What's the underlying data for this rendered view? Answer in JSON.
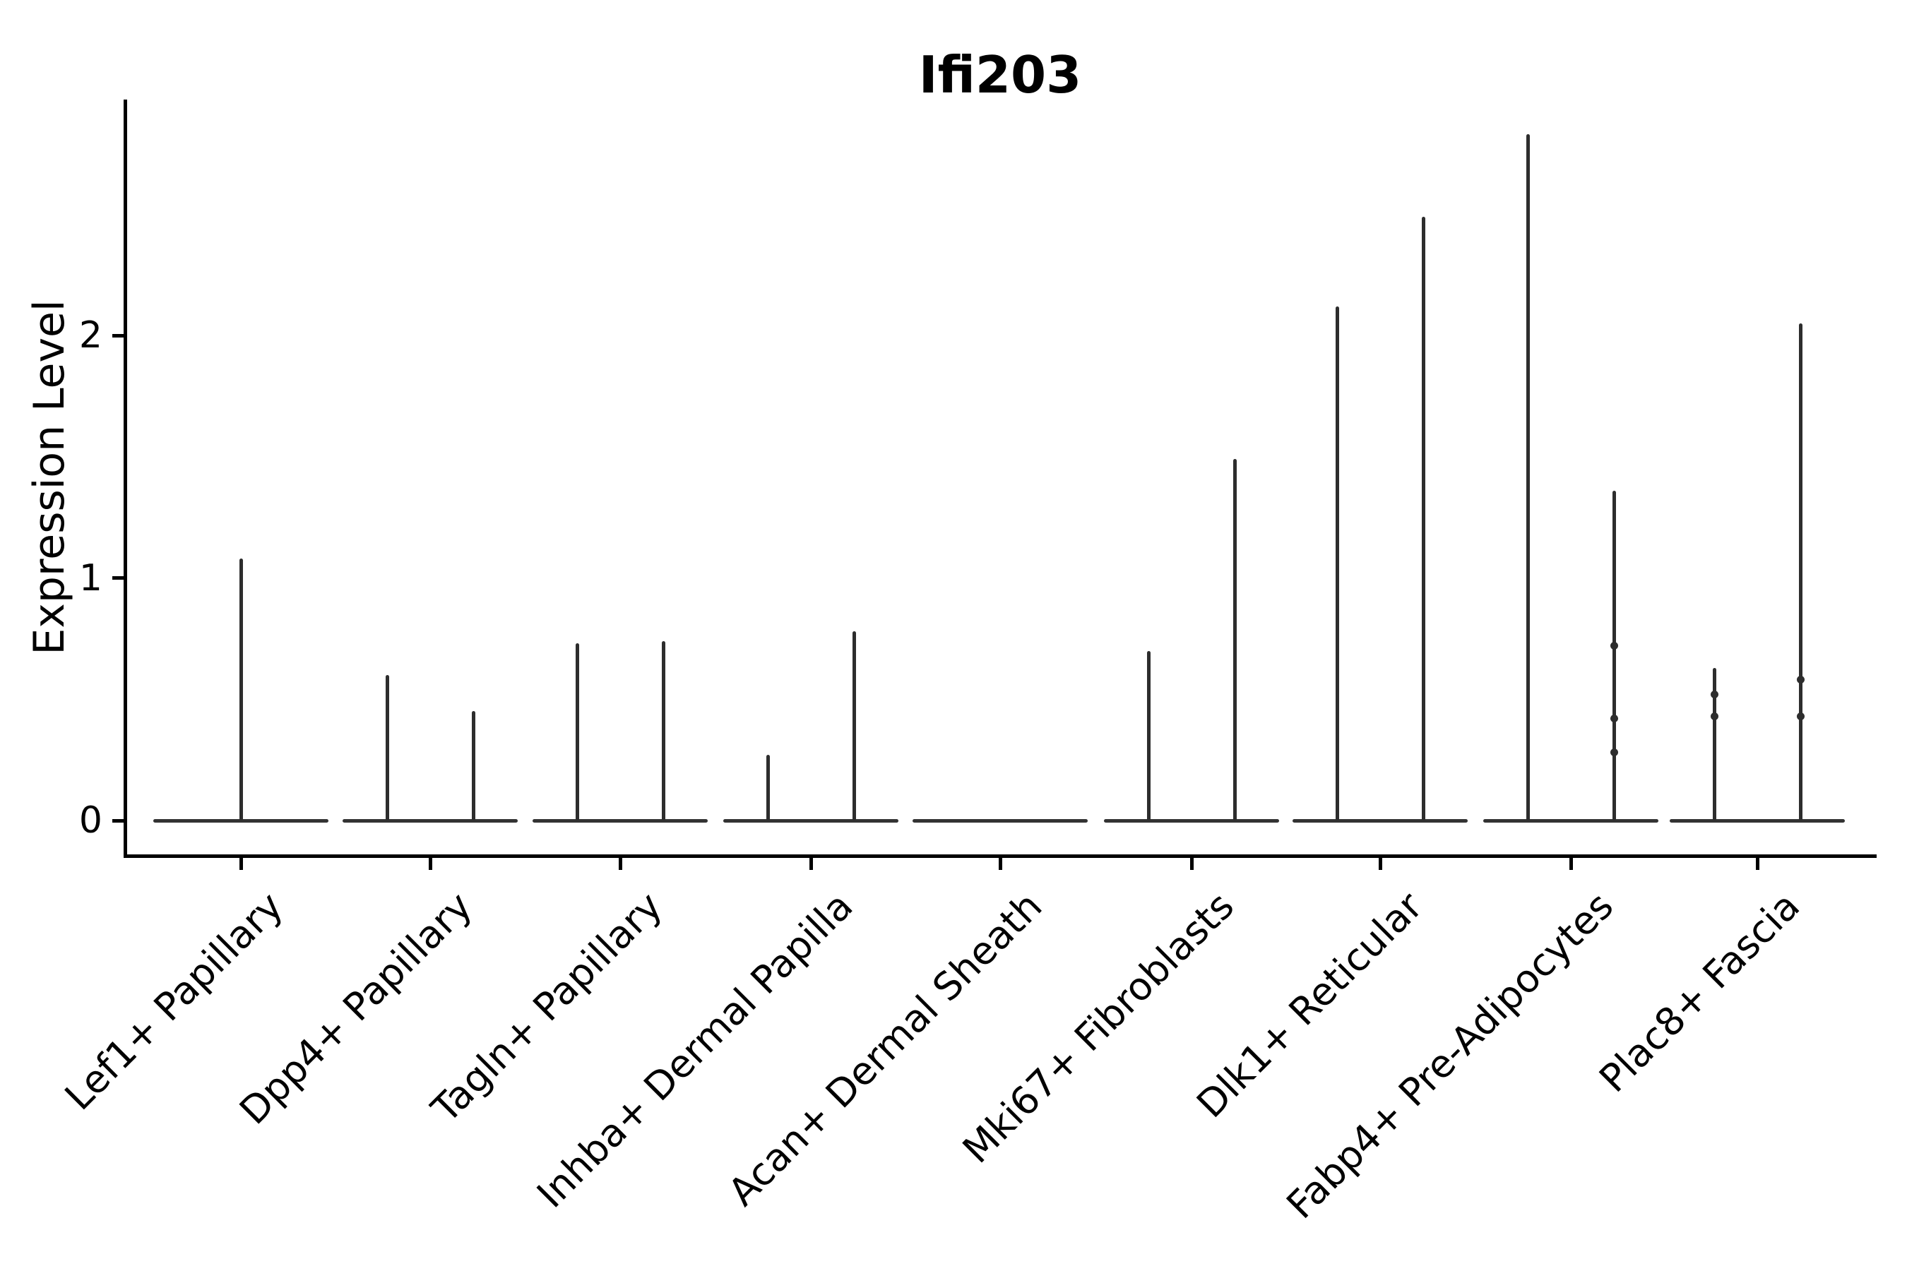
{
  "title": "Ifi203",
  "y_axis": {
    "label": "Expression Level",
    "tick_labels": [
      "0",
      "1",
      "2"
    ]
  },
  "colors": {
    "violin_line": "#2d2d2d",
    "axis": "#000000",
    "text": "#000000",
    "background": "#ffffff"
  },
  "chart_data": {
    "type": "violin",
    "title": "Ifi203",
    "xlabel": "",
    "ylabel": "Expression Level",
    "ylim": [
      -0.15,
      2.97
    ],
    "yticks": [
      0,
      1,
      2
    ],
    "grid": false,
    "legend": "none",
    "x_tick_rotation": 45,
    "categories": [
      "Lef1+ Papillary",
      "Dpp4+ Papillary",
      "Tagln+ Papillary",
      "Inhba+ Dermal Papilla",
      "Acan+ Dermal Sheath",
      "Mki67+ Fibroblasts",
      "Dlk1+ Reticular",
      "Fabp4+ Pre-Adipocytes",
      "Plac8+ Fascia"
    ],
    "description": "Violin plot of Ifi203 expression; each cluster shows a flat violin base at expression 0 with thin spikes reaching the maximum expression of sub-violins (left/right dodged, or centered when single).",
    "base_value": 0,
    "violins": [
      {
        "category": "Lef1+ Papillary",
        "spikes": [
          {
            "position": "center",
            "max": 1.08,
            "bumps": []
          }
        ]
      },
      {
        "category": "Dpp4+ Papillary",
        "spikes": [
          {
            "position": "left",
            "max": 0.6,
            "bumps": []
          },
          {
            "position": "right",
            "max": 0.45,
            "bumps": []
          }
        ]
      },
      {
        "category": "Tagln+ Papillary",
        "spikes": [
          {
            "position": "left",
            "max": 0.73,
            "bumps": []
          },
          {
            "position": "right",
            "max": 0.74,
            "bumps": []
          }
        ]
      },
      {
        "category": "Inhba+ Dermal Papilla",
        "spikes": [
          {
            "position": "left",
            "max": 0.27,
            "bumps": []
          },
          {
            "position": "right",
            "max": 0.78,
            "bumps": []
          }
        ]
      },
      {
        "category": "Acan+ Dermal Sheath",
        "spikes": []
      },
      {
        "category": "Mki67+ Fibroblasts",
        "spikes": [
          {
            "position": "left",
            "max": 0.7,
            "bumps": []
          },
          {
            "position": "right",
            "max": 1.49,
            "bumps": []
          }
        ]
      },
      {
        "category": "Dlk1+ Reticular",
        "spikes": [
          {
            "position": "left",
            "max": 2.12,
            "bumps": []
          },
          {
            "position": "right",
            "max": 2.49,
            "bumps": []
          }
        ]
      },
      {
        "category": "Fabp4+ Pre-Adipocytes",
        "spikes": [
          {
            "position": "left",
            "max": 2.83,
            "bumps": []
          },
          {
            "position": "right",
            "max": 1.36,
            "bumps": [
              0.72,
              0.42,
              0.28
            ]
          }
        ]
      },
      {
        "category": "Plac8+ Fascia",
        "spikes": [
          {
            "position": "left",
            "max": 0.63,
            "bumps": [
              0.52,
              0.43
            ]
          },
          {
            "position": "right",
            "max": 2.05,
            "bumps": [
              0.58,
              0.43
            ]
          }
        ]
      }
    ]
  }
}
